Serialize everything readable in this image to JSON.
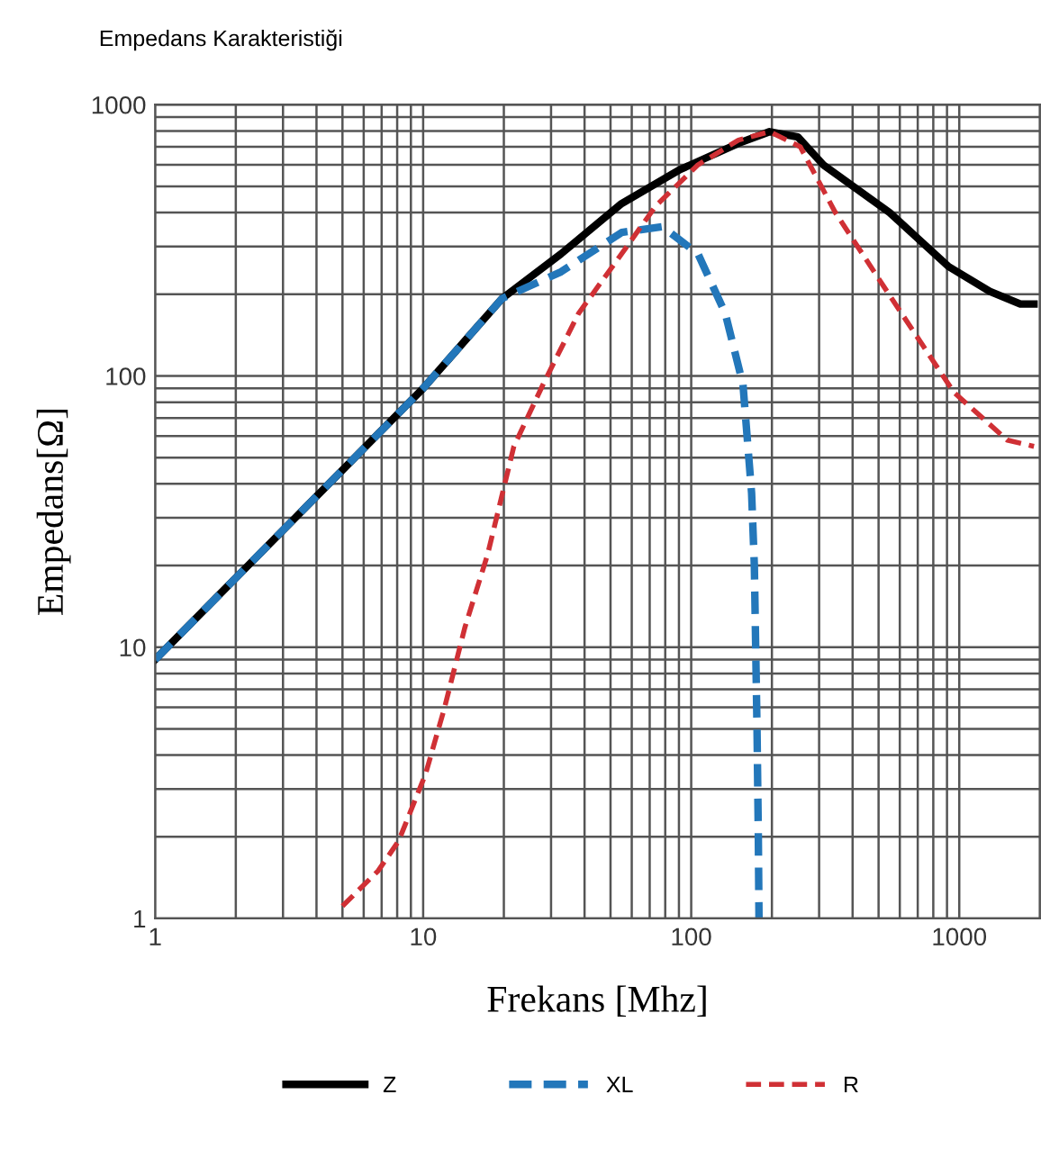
{
  "chart_data": {
    "type": "line",
    "title": "Empedans Karakteristiği",
    "xlabel": "Frekans [Mhz]",
    "ylabel": "Empedans[Ω]",
    "log": "xy",
    "grid": true,
    "legend": "bottom",
    "xlim": [
      1,
      2000
    ],
    "ylim": [
      1,
      1000
    ],
    "xticks": [
      1,
      10,
      100,
      1000
    ],
    "yticks": [
      1,
      10,
      100,
      1000
    ],
    "series": [
      {
        "name": "Z",
        "color": "#000000",
        "line_style": "solid",
        "x": [
          1,
          2,
          5,
          10,
          19.7,
          32.7,
          55,
          91,
          150,
          196,
          250,
          311,
          550,
          912,
          1300,
          1690,
          1900
        ],
        "values": [
          9,
          18,
          45,
          90,
          193,
          282,
          432,
          577,
          720,
          795,
          760,
          600,
          400,
          253,
          205,
          184,
          184
        ]
      },
      {
        "name": "XL",
        "color": "#2377ba",
        "line_style": "dashed",
        "x": [
          1,
          2,
          5,
          10,
          19.7,
          32.7,
          55,
          78,
          106,
          134,
          156,
          168,
          172,
          176,
          178,
          179
        ],
        "values": [
          9,
          18,
          45,
          90,
          193,
          242,
          338,
          355,
          282,
          170,
          93,
          37,
          20,
          5,
          2,
          1
        ]
      },
      {
        "name": "R",
        "color": "#d03035",
        "line_style": "dashed",
        "x": [
          5,
          6.8,
          8.1,
          9.1,
          10.2,
          12,
          14.3,
          17.4,
          21.8,
          28,
          38,
          55,
          74,
          106,
          150,
          196,
          255,
          345,
          550,
          955,
          1510,
          1900
        ],
        "values": [
          1.11,
          1.5,
          1.93,
          2.57,
          3.4,
          5.95,
          11.8,
          22,
          55,
          93,
          170,
          282,
          425,
          600,
          740,
          795,
          700,
          400,
          198,
          87,
          58,
          55
        ]
      }
    ]
  }
}
